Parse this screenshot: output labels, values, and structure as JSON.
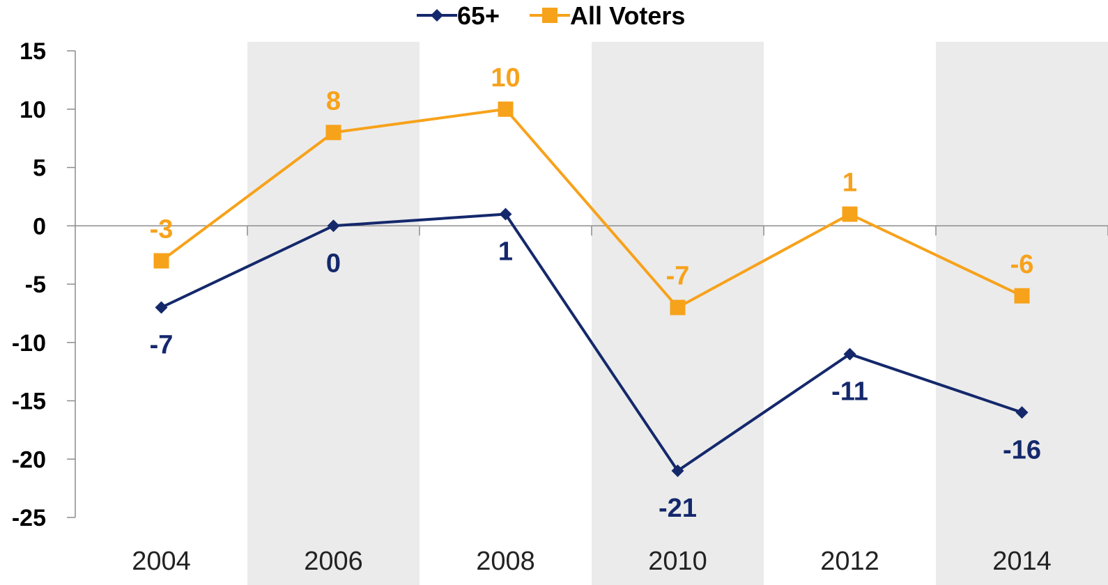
{
  "chart_data": {
    "type": "line",
    "categories": [
      "2004",
      "2006",
      "2008",
      "2010",
      "2012",
      "2014"
    ],
    "series": [
      {
        "name": "65+",
        "values": [
          -7,
          0,
          1,
          -21,
          -11,
          -16
        ],
        "color": "#14286b",
        "marker": "diamond"
      },
      {
        "name": "All Voters",
        "values": [
          -3,
          8,
          10,
          -7,
          1,
          -6
        ],
        "color": "#f7a21b",
        "marker": "square"
      }
    ],
    "ylim": [
      -25,
      15
    ],
    "yticks": [
      15,
      10,
      5,
      0,
      -5,
      -10,
      -15,
      -20,
      -25
    ],
    "band_color": "#ebebeb",
    "shaded_categories": [
      "2006",
      "2010",
      "2014"
    ],
    "legend": "top-center",
    "grid": false
  }
}
